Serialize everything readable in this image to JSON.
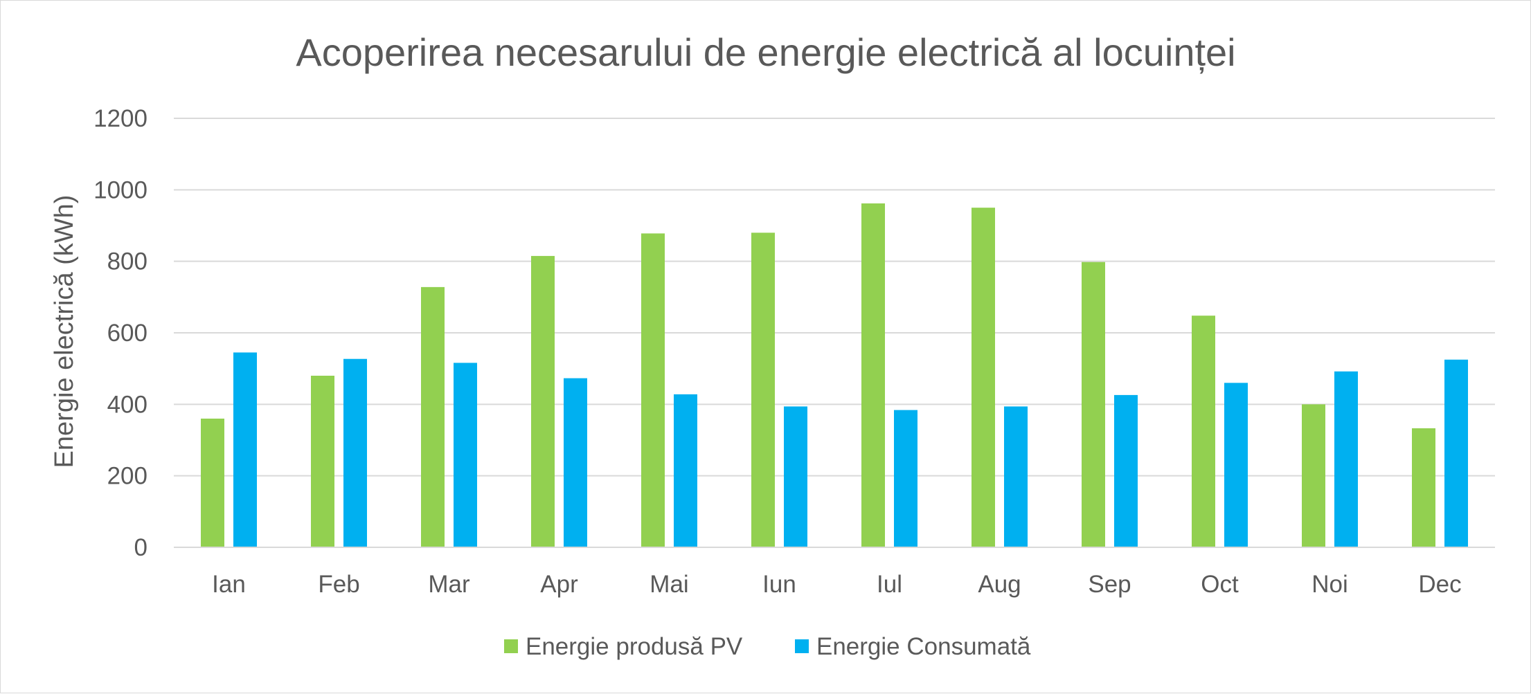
{
  "chart_data": {
    "type": "bar",
    "title": "Acoperirea necesarului de energie electrică al locuinței",
    "xlabel": "",
    "ylabel": "Energie electrică (kWh)",
    "ylim": [
      0,
      1200
    ],
    "yticks": [
      0,
      200,
      400,
      600,
      800,
      1000,
      1200
    ],
    "grid": true,
    "legend_position": "bottom",
    "categories": [
      "Ian",
      "Feb",
      "Mar",
      "Apr",
      "Mai",
      "Iun",
      "Iul",
      "Aug",
      "Sep",
      "Oct",
      "Noi",
      "Dec"
    ],
    "series": [
      {
        "name": "Energie produsă PV",
        "color": "#92d050",
        "values": [
          360,
          480,
          728,
          815,
          878,
          880,
          962,
          950,
          798,
          648,
          400,
          333
        ]
      },
      {
        "name": "Energie Consumată",
        "color": "#00b0f0",
        "values": [
          545,
          527,
          516,
          473,
          428,
          394,
          384,
          394,
          426,
          460,
          492,
          525
        ]
      }
    ]
  }
}
